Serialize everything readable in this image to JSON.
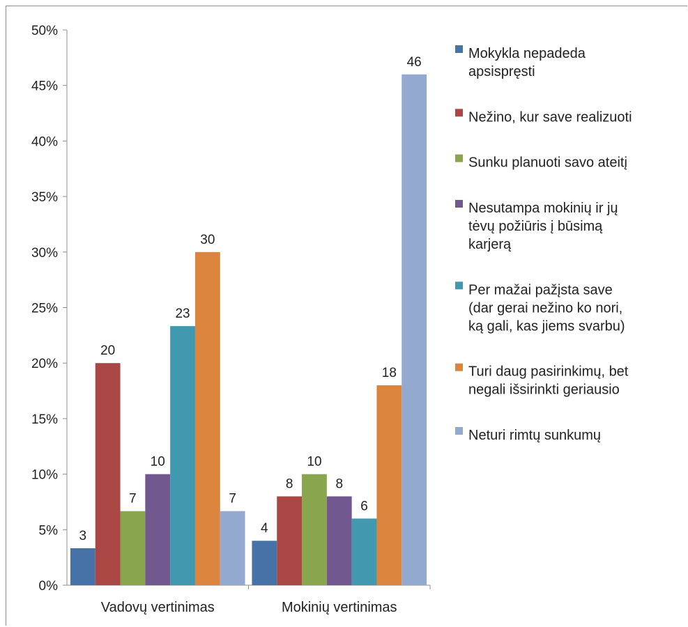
{
  "chart_data": {
    "type": "bar",
    "categories": [
      "Vadovų vertinimas",
      "Mokinių vertinimas"
    ],
    "ylim": [
      0,
      50
    ],
    "y_ticks": [
      "0%",
      "5%",
      "10%",
      "15%",
      "20%",
      "25%",
      "30%",
      "35%",
      "40%",
      "45%",
      "50%"
    ],
    "grid": false,
    "legend_position": "right",
    "series": [
      {
        "name": "Mokykla nepadeda apsispręsti",
        "name_lines": [
          "Mokykla nepadeda",
          "apsispręsti"
        ],
        "color": "#4672A8",
        "values": [
          3.33,
          4
        ],
        "labels": [
          "3",
          "4"
        ]
      },
      {
        "name": "Nežino, kur save realizuoti",
        "name_lines": [
          "Nežino, kur save realizuoti"
        ],
        "color": "#AA4644",
        "values": [
          20,
          8
        ],
        "labels": [
          "20",
          "8"
        ]
      },
      {
        "name": "Sunku planuoti savo ateitį",
        "name_lines": [
          "Sunku planuoti savo ateitį"
        ],
        "color": "#89A54E",
        "values": [
          6.67,
          10
        ],
        "labels": [
          "7",
          "10"
        ]
      },
      {
        "name": "Nesutampa mokinių ir jų tėvų požiūris į būsimą karjerą",
        "name_lines": [
          "Nesutampa mokinių ir jų",
          "tėvų požiūris į būsimą",
          "karjerą"
        ],
        "color": "#71588F",
        "values": [
          10,
          8
        ],
        "labels": [
          "10",
          "8"
        ]
      },
      {
        "name": "Per mažai pažįsta save (dar gerai nežino ko nori, ką gali, kas jiems svarbu)",
        "name_lines": [
          "Per mažai pažįsta save",
          "(dar gerai nežino ko nori,",
          "ką gali, kas jiems svarbu)"
        ],
        "color": "#4298AF",
        "values": [
          23.33,
          6
        ],
        "labels": [
          "23",
          "6"
        ]
      },
      {
        "name": "Turi daug pasirinkimų, bet negali išsirinkti geriausio",
        "name_lines": [
          "Turi daug pasirinkimų, bet",
          "negali išsirinkti geriausio"
        ],
        "color": "#DB843D",
        "values": [
          30,
          18
        ],
        "labels": [
          "30",
          "18"
        ]
      },
      {
        "name": "Neturi rimtų sunkumų",
        "name_lines": [
          "Neturi rimtų sunkumų"
        ],
        "color": "#93A9D0",
        "values": [
          6.67,
          46
        ],
        "labels": [
          "7",
          "46"
        ]
      }
    ]
  }
}
